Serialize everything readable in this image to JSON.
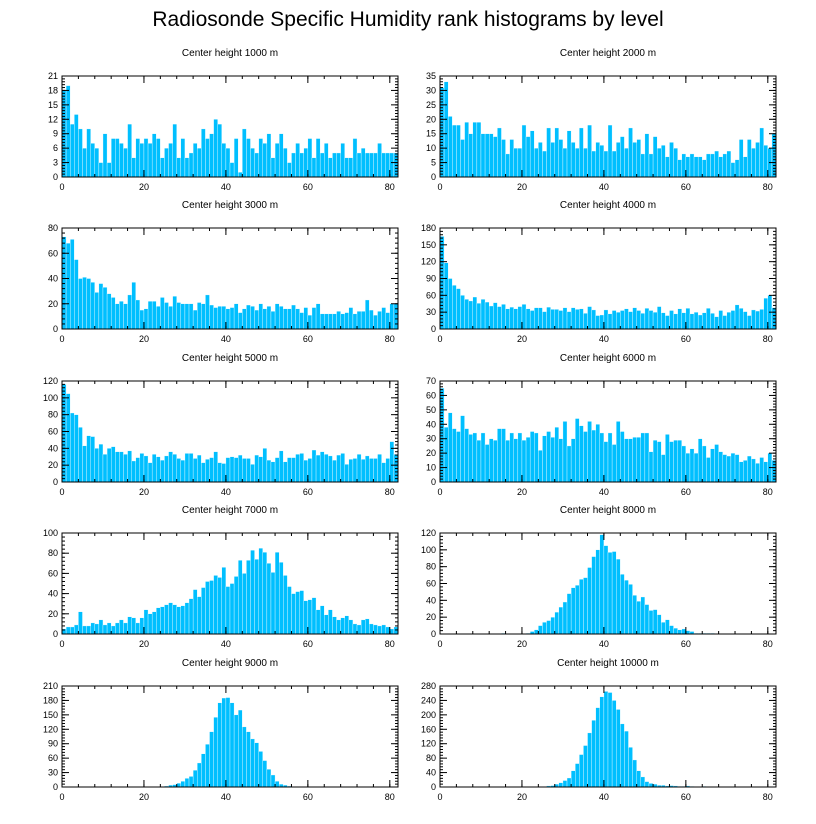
{
  "title": "Radiosonde Specific Humidity rank histograms by level",
  "chart_data": [
    {
      "type": "bar",
      "title": "Center height 1000 m",
      "xlim": [
        0,
        82
      ],
      "ylim": [
        0,
        21
      ],
      "xticks": [
        0,
        20,
        40,
        60,
        80
      ],
      "yticks": [
        0,
        3,
        6,
        9,
        12,
        15,
        18,
        21
      ],
      "values": [
        18,
        19,
        11,
        13,
        10,
        6,
        10,
        7,
        6,
        3,
        9,
        3,
        8,
        8,
        7,
        6,
        11,
        4,
        8,
        7,
        8,
        7,
        9,
        8,
        4,
        6,
        7,
        11,
        4,
        8,
        4,
        5,
        7,
        6,
        10,
        8,
        9,
        12,
        11,
        7,
        6,
        3,
        8,
        1,
        10,
        8,
        6,
        5,
        8,
        7,
        9,
        4,
        7,
        9,
        6,
        3,
        5,
        7,
        5,
        6,
        8,
        4,
        8,
        5,
        7,
        4,
        5,
        5,
        7,
        4,
        4,
        8,
        5,
        6,
        5,
        5,
        5,
        7,
        5,
        5,
        5,
        5
      ]
    },
    {
      "type": "bar",
      "title": "Center height 2000 m",
      "xlim": [
        0,
        82
      ],
      "ylim": [
        0,
        35
      ],
      "xticks": [
        0,
        20,
        40,
        60,
        80
      ],
      "yticks": [
        0,
        5,
        10,
        15,
        20,
        25,
        30,
        35
      ],
      "values": [
        31,
        33,
        21,
        18,
        18,
        13,
        19,
        15,
        19,
        19,
        15,
        15,
        15,
        14,
        17,
        13,
        8,
        13,
        10,
        10,
        18,
        14,
        16,
        10,
        12,
        9,
        17,
        12,
        17,
        13,
        10,
        16,
        12,
        10,
        17,
        10,
        18,
        9,
        12,
        11,
        9,
        18,
        9,
        12,
        14,
        10,
        17,
        12,
        13,
        8,
        15,
        8,
        14,
        10,
        11,
        7,
        12,
        10,
        6,
        8,
        7,
        8,
        7,
        7,
        6,
        8,
        8,
        9,
        7,
        8,
        9,
        5,
        6,
        13,
        7,
        13,
        10,
        12,
        17,
        11,
        10,
        15
      ]
    },
    {
      "type": "bar",
      "title": "Center height 3000 m",
      "xlim": [
        0,
        82
      ],
      "ylim": [
        0,
        80
      ],
      "xticks": [
        0,
        20,
        40,
        60,
        80
      ],
      "yticks": [
        0,
        20,
        40,
        60,
        80
      ],
      "values": [
        73,
        68,
        71,
        55,
        40,
        41,
        40,
        37,
        29,
        36,
        33,
        28,
        25,
        20,
        22,
        20,
        27,
        37,
        23,
        15,
        16,
        22,
        22,
        18,
        25,
        21,
        18,
        26,
        21,
        20,
        20,
        20,
        15,
        21,
        20,
        27,
        19,
        17,
        18,
        18,
        16,
        17,
        20,
        13,
        16,
        19,
        18,
        15,
        20,
        16,
        18,
        14,
        20,
        18,
        16,
        16,
        19,
        16,
        13,
        17,
        11,
        17,
        20,
        12,
        12,
        12,
        12,
        14,
        12,
        13,
        17,
        12,
        14,
        14,
        23,
        15,
        11,
        14,
        17,
        13,
        20,
        20
      ]
    },
    {
      "type": "bar",
      "title": "Center height 4000 m",
      "xlim": [
        0,
        82
      ],
      "ylim": [
        0,
        180
      ],
      "xticks": [
        0,
        20,
        40,
        60,
        80
      ],
      "yticks": [
        0,
        30,
        60,
        90,
        120,
        150,
        180
      ],
      "values": [
        165,
        118,
        90,
        78,
        72,
        60,
        53,
        50,
        57,
        46,
        53,
        48,
        41,
        47,
        40,
        44,
        36,
        39,
        36,
        40,
        44,
        36,
        33,
        38,
        38,
        31,
        39,
        35,
        35,
        33,
        38,
        31,
        38,
        35,
        36,
        28,
        40,
        34,
        24,
        25,
        34,
        27,
        33,
        30,
        33,
        36,
        31,
        38,
        33,
        28,
        37,
        33,
        30,
        40,
        29,
        24,
        33,
        27,
        36,
        29,
        37,
        27,
        30,
        25,
        29,
        37,
        28,
        22,
        33,
        24,
        30,
        33,
        43,
        37,
        31,
        24,
        34,
        32,
        35,
        55,
        60,
        38
      ]
    },
    {
      "type": "bar",
      "title": "Center height 5000 m",
      "xlim": [
        0,
        82
      ],
      "ylim": [
        0,
        120
      ],
      "xticks": [
        0,
        20,
        40,
        60,
        80
      ],
      "yticks": [
        0,
        20,
        40,
        60,
        80,
        100,
        120
      ],
      "values": [
        116,
        105,
        82,
        80,
        65,
        43,
        55,
        54,
        40,
        45,
        33,
        40,
        42,
        36,
        36,
        33,
        37,
        25,
        29,
        34,
        31,
        23,
        33,
        30,
        26,
        31,
        36,
        33,
        28,
        26,
        34,
        34,
        28,
        32,
        23,
        27,
        29,
        36,
        23,
        22,
        29,
        30,
        29,
        32,
        28,
        28,
        21,
        32,
        30,
        40,
        26,
        24,
        29,
        37,
        24,
        29,
        29,
        33,
        34,
        26,
        28,
        38,
        32,
        36,
        33,
        31,
        26,
        32,
        34,
        21,
        27,
        28,
        33,
        27,
        31,
        28,
        28,
        33,
        23,
        28,
        48,
        33
      ]
    },
    {
      "type": "bar",
      "title": "Center height 6000 m",
      "xlim": [
        0,
        82
      ],
      "ylim": [
        0,
        70
      ],
      "xticks": [
        0,
        20,
        40,
        60,
        80
      ],
      "yticks": [
        0,
        10,
        20,
        30,
        40,
        50,
        60,
        70
      ],
      "values": [
        65,
        38,
        48,
        37,
        35,
        46,
        37,
        33,
        34,
        29,
        34,
        26,
        30,
        29,
        37,
        37,
        29,
        34,
        30,
        34,
        29,
        31,
        35,
        34,
        22,
        32,
        35,
        31,
        38,
        30,
        42,
        25,
        30,
        44,
        39,
        35,
        42,
        36,
        40,
        34,
        28,
        34,
        26,
        42,
        35,
        30,
        30,
        31,
        31,
        34,
        34,
        21,
        29,
        28,
        19,
        33,
        28,
        29,
        29,
        25,
        20,
        23,
        20,
        30,
        25,
        17,
        23,
        26,
        21,
        19,
        18,
        20,
        19,
        14,
        15,
        18,
        16,
        13,
        17,
        14,
        20,
        15
      ]
    },
    {
      "type": "bar",
      "title": "Center height 7000 m",
      "xlim": [
        0,
        82
      ],
      "ylim": [
        0,
        100
      ],
      "xticks": [
        0,
        20,
        40,
        60,
        80
      ],
      "yticks": [
        0,
        20,
        40,
        60,
        80,
        100
      ],
      "values": [
        5,
        7,
        7,
        9,
        22,
        8,
        8,
        11,
        10,
        14,
        9,
        11,
        8,
        11,
        14,
        11,
        17,
        16,
        11,
        16,
        24,
        20,
        22,
        26,
        27,
        29,
        31,
        29,
        27,
        28,
        31,
        35,
        44,
        37,
        46,
        52,
        53,
        58,
        56,
        66,
        47,
        50,
        57,
        73,
        60,
        73,
        83,
        74,
        85,
        81,
        70,
        61,
        81,
        71,
        58,
        47,
        40,
        42,
        43,
        33,
        34,
        36,
        24,
        28,
        19,
        24,
        17,
        14,
        16,
        18,
        14,
        10,
        9,
        14,
        15,
        10,
        9,
        8,
        9,
        7,
        5,
        7
      ]
    },
    {
      "type": "bar",
      "title": "Center height 8000 m",
      "xlim": [
        0,
        82
      ],
      "ylim": [
        0,
        120
      ],
      "xticks": [
        0,
        20,
        40,
        60,
        80
      ],
      "yticks": [
        0,
        20,
        40,
        60,
        80,
        100,
        120
      ],
      "values": [
        0,
        0,
        0,
        0,
        0,
        0,
        0,
        0,
        0,
        0,
        0,
        0,
        0,
        0,
        0,
        1,
        0,
        0,
        0,
        0,
        0,
        1,
        3,
        5,
        10,
        14,
        16,
        20,
        26,
        32,
        38,
        48,
        55,
        58,
        65,
        67,
        79,
        92,
        100,
        118,
        105,
        97,
        98,
        89,
        71,
        64,
        59,
        46,
        39,
        44,
        35,
        28,
        29,
        23,
        14,
        17,
        10,
        7,
        5,
        6,
        4,
        3,
        1,
        1,
        1,
        1,
        1,
        0,
        0,
        0,
        0,
        0,
        0,
        0,
        0,
        0,
        0,
        0,
        0,
        0,
        0,
        0
      ]
    },
    {
      "type": "bar",
      "title": "Center height 9000 m",
      "xlim": [
        0,
        82
      ],
      "ylim": [
        0,
        210
      ],
      "xticks": [
        0,
        20,
        40,
        60,
        80
      ],
      "yticks": [
        0,
        30,
        60,
        90,
        120,
        150,
        180,
        210
      ],
      "values": [
        0,
        0,
        0,
        0,
        0,
        0,
        0,
        0,
        0,
        0,
        0,
        0,
        0,
        0,
        0,
        0,
        0,
        0,
        0,
        0,
        0,
        0,
        0,
        1,
        1,
        2,
        4,
        5,
        8,
        12,
        18,
        22,
        35,
        50,
        69,
        89,
        115,
        145,
        175,
        185,
        186,
        175,
        150,
        160,
        125,
        115,
        100,
        92,
        74,
        55,
        37,
        25,
        12,
        6,
        4,
        2,
        1,
        1,
        1,
        0,
        0,
        0,
        0,
        0,
        0,
        0,
        0,
        0,
        0,
        0,
        0,
        0,
        0,
        0,
        0,
        0,
        0,
        0,
        0,
        0,
        0,
        0
      ]
    },
    {
      "type": "bar",
      "title": "Center height 10000 m",
      "xlim": [
        0,
        82
      ],
      "ylim": [
        0,
        280
      ],
      "xticks": [
        0,
        20,
        40,
        60,
        80
      ],
      "yticks": [
        0,
        40,
        80,
        120,
        160,
        200,
        240,
        280
      ],
      "values": [
        0,
        0,
        0,
        0,
        0,
        0,
        0,
        0,
        0,
        0,
        0,
        0,
        0,
        0,
        0,
        0,
        0,
        0,
        0,
        0,
        0,
        0,
        0,
        0,
        1,
        1,
        3,
        4,
        8,
        12,
        18,
        25,
        45,
        65,
        90,
        115,
        150,
        185,
        220,
        250,
        265,
        262,
        240,
        215,
        175,
        155,
        110,
        75,
        45,
        28,
        15,
        10,
        8,
        5,
        5,
        3,
        4,
        3,
        2,
        2,
        3,
        2,
        1,
        1,
        2,
        1,
        1,
        0,
        0,
        0,
        0,
        0,
        0,
        0,
        0,
        0,
        0,
        0,
        0,
        0,
        0,
        0
      ]
    }
  ]
}
